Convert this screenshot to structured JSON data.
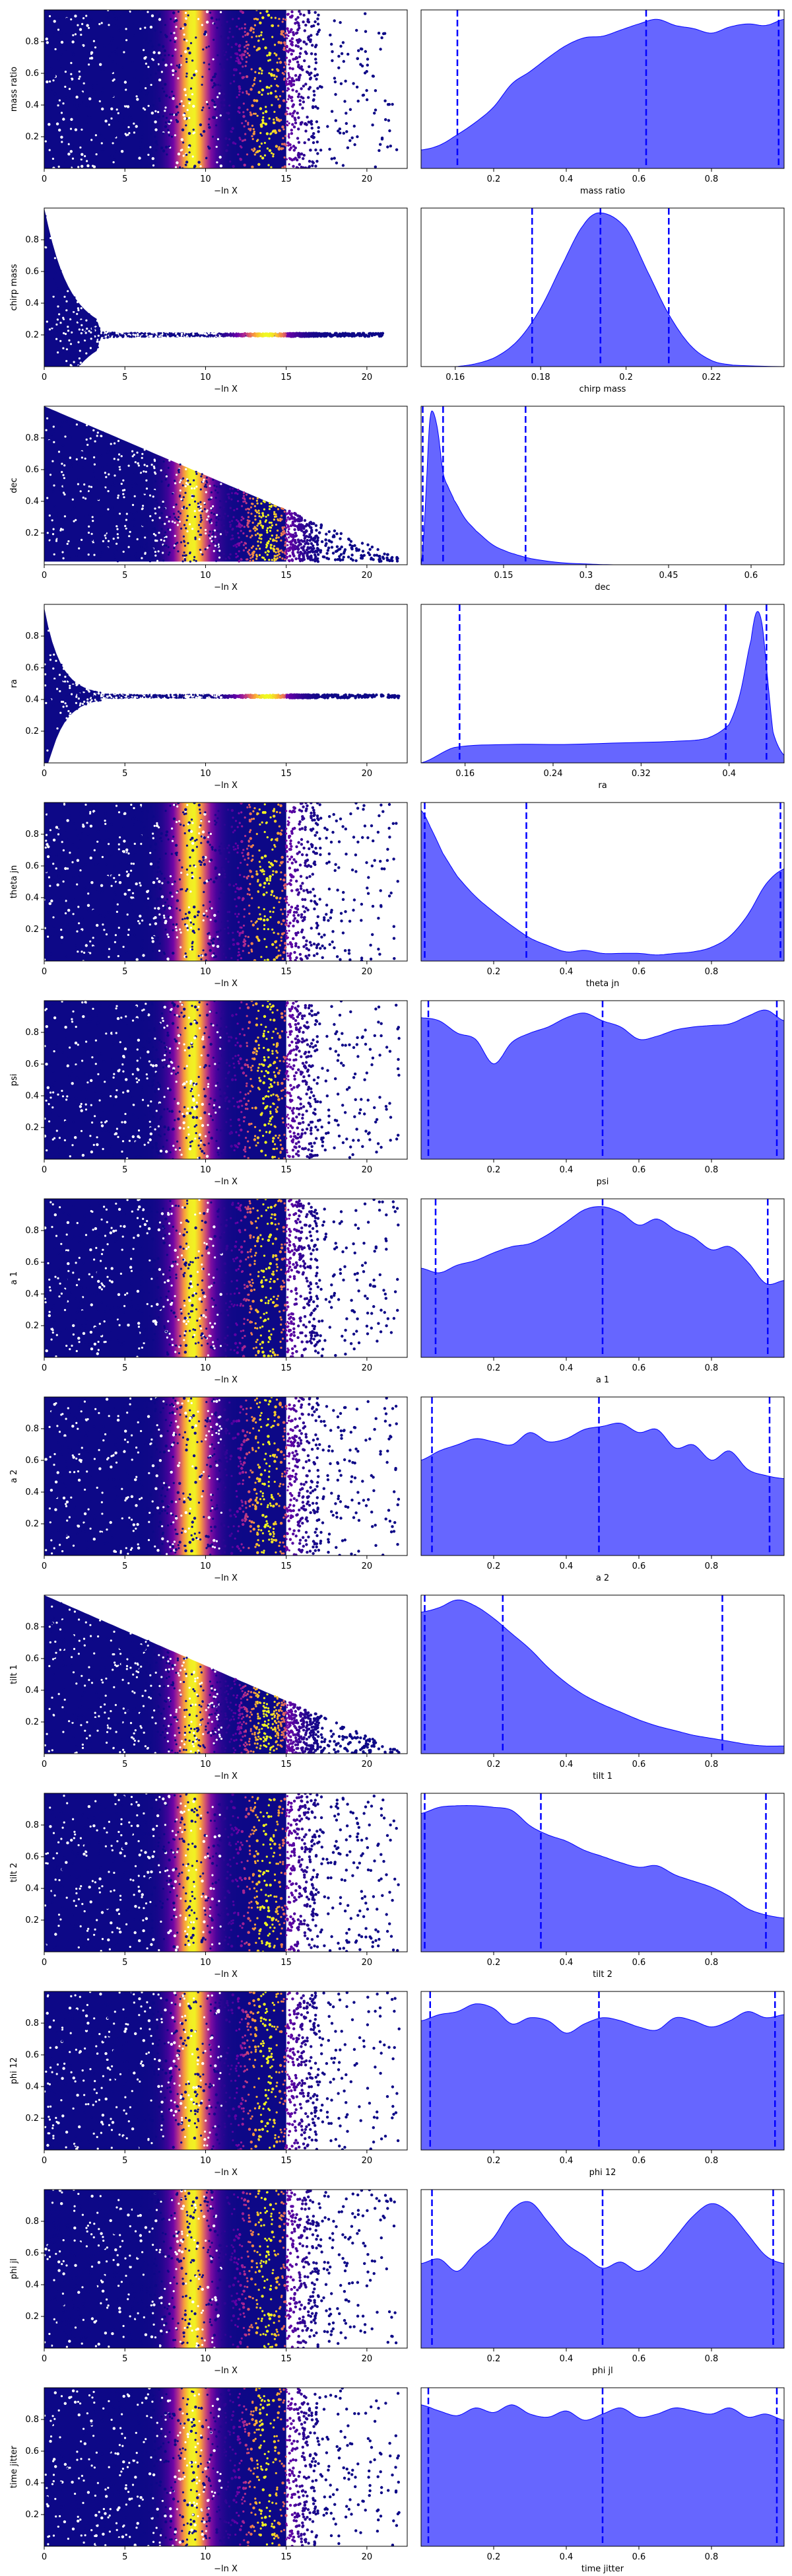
{
  "figure": {
    "colors": {
      "trace_low": "#0d0887",
      "trace_mid": "#cc4778",
      "trace_peak": "#f0f921",
      "posterior_fill": "#6666ff",
      "posterior_line": "#0000ff",
      "quantile_line": "#0000ff"
    },
    "colormap": "plasma"
  },
  "chart_data": [
    {
      "type": "scatter",
      "parameter": "mass ratio",
      "trace": {
        "xlabel": "−ln X",
        "ylabel": "mass ratio",
        "xlim": [
          0,
          22.5
        ],
        "ylim": [
          0.0,
          1.0
        ],
        "xticks": [
          0,
          5,
          10,
          15,
          20
        ],
        "yticks": [
          0.2,
          0.4,
          0.6,
          0.8
        ],
        "pattern": "uniform",
        "xmax": 22
      },
      "posterior": {
        "type": "area",
        "xlabel": "mass ratio",
        "xlim": [
          0.0,
          1.0
        ],
        "xticks": [
          0.2,
          0.4,
          0.6,
          0.8
        ],
        "x": [
          0.0,
          0.05,
          0.1,
          0.15,
          0.2,
          0.25,
          0.3,
          0.35,
          0.4,
          0.45,
          0.5,
          0.55,
          0.6,
          0.65,
          0.7,
          0.75,
          0.8,
          0.85,
          0.9,
          0.95,
          1.0
        ],
        "density": [
          0.12,
          0.15,
          0.22,
          0.3,
          0.4,
          0.55,
          0.63,
          0.72,
          0.8,
          0.85,
          0.86,
          0.9,
          0.94,
          0.97,
          0.93,
          0.91,
          0.88,
          0.92,
          0.94,
          0.93,
          0.97
        ],
        "quantiles": [
          0.1,
          0.62,
          0.985
        ]
      }
    },
    {
      "type": "scatter",
      "parameter": "chirp mass",
      "trace": {
        "xlabel": "−ln X",
        "ylabel": "chirp mass",
        "xlim": [
          0,
          22.5
        ],
        "ylim": [
          0.0,
          1.0
        ],
        "xticks": [
          0,
          5,
          10,
          15,
          20
        ],
        "yticks": [
          0.2,
          0.4,
          0.6,
          0.8
        ],
        "pattern": "converge",
        "center": 0.2,
        "start_spread": 0.8,
        "decay": 1.5,
        "xmax": 21
      },
      "posterior": {
        "type": "area",
        "xlabel": "chirp mass",
        "xlim": [
          0.152,
          0.237
        ],
        "xticks": [
          0.16,
          0.18,
          0.2,
          0.22
        ],
        "x": [
          0.152,
          0.16,
          0.165,
          0.17,
          0.175,
          0.18,
          0.185,
          0.19,
          0.194,
          0.2,
          0.205,
          0.21,
          0.215,
          0.22,
          0.225,
          0.237
        ],
        "density": [
          0.0,
          0.0,
          0.02,
          0.07,
          0.18,
          0.38,
          0.66,
          0.92,
          1.0,
          0.9,
          0.62,
          0.34,
          0.14,
          0.04,
          0.01,
          0.0
        ],
        "quantiles": [
          0.178,
          0.194,
          0.21
        ]
      }
    },
    {
      "type": "scatter",
      "parameter": "dec",
      "trace": {
        "xlabel": "−ln X",
        "ylabel": "dec",
        "xlim": [
          0,
          22.5
        ],
        "ylim": [
          0.0,
          1.0
        ],
        "xticks": [
          0,
          5,
          10,
          15,
          20
        ],
        "yticks": [
          0.2,
          0.4,
          0.6,
          0.8
        ],
        "pattern": "wedge",
        "center": 0.02,
        "start_spread": 0.98,
        "xmax": 22
      },
      "posterior": {
        "type": "area",
        "xlabel": "dec",
        "xlim": [
          0.0,
          0.66
        ],
        "xticks": [
          0.15,
          0.3,
          0.45,
          0.6
        ],
        "x": [
          0.0,
          0.005,
          0.01,
          0.015,
          0.02,
          0.03,
          0.04,
          0.05,
          0.06,
          0.08,
          0.1,
          0.13,
          0.16,
          0.2,
          0.25,
          0.3,
          0.35,
          0.45,
          0.66
        ],
        "density": [
          0.0,
          0.2,
          0.55,
          0.9,
          1.0,
          0.88,
          0.6,
          0.5,
          0.42,
          0.3,
          0.22,
          0.13,
          0.08,
          0.04,
          0.015,
          0.005,
          0.0,
          0.0,
          0.0
        ],
        "quantiles": [
          0.003,
          0.04,
          0.19
        ]
      }
    },
    {
      "type": "scatter",
      "parameter": "ra",
      "trace": {
        "xlabel": "−ln X",
        "ylabel": "ra",
        "xlim": [
          0,
          22.5
        ],
        "ylim": [
          0.0,
          1.0
        ],
        "xticks": [
          0,
          5,
          10,
          15,
          20
        ],
        "yticks": [
          0.2,
          0.4,
          0.6,
          0.8
        ],
        "pattern": "converge",
        "center": 0.42,
        "start_spread": 0.55,
        "decay": 1.0,
        "xmax": 22
      },
      "posterior": {
        "type": "area",
        "xlabel": "ra",
        "xlim": [
          0.12,
          0.45
        ],
        "xticks": [
          0.16,
          0.24,
          0.32,
          0.4
        ],
        "x": [
          0.12,
          0.15,
          0.2,
          0.25,
          0.3,
          0.35,
          0.38,
          0.4,
          0.41,
          0.42,
          0.425,
          0.43,
          0.435,
          0.44,
          0.45
        ],
        "density": [
          0.0,
          0.1,
          0.12,
          0.12,
          0.13,
          0.14,
          0.16,
          0.25,
          0.45,
          0.8,
          0.98,
          0.9,
          0.55,
          0.2,
          0.05
        ],
        "quantiles": [
          0.155,
          0.397,
          0.434
        ]
      }
    },
    {
      "type": "scatter",
      "parameter": "theta jn",
      "trace": {
        "xlabel": "−ln X",
        "ylabel": "theta jn",
        "xlim": [
          0,
          22.5
        ],
        "ylim": [
          0.0,
          1.0
        ],
        "xticks": [
          0,
          5,
          10,
          15,
          20
        ],
        "yticks": [
          0.2,
          0.4,
          0.6,
          0.8
        ],
        "pattern": "uniform",
        "xmax": 22
      },
      "posterior": {
        "type": "area",
        "xlabel": "theta jn",
        "xlim": [
          0.0,
          1.0
        ],
        "xticks": [
          0.2,
          0.4,
          0.6,
          0.8
        ],
        "x": [
          0.0,
          0.03,
          0.06,
          0.1,
          0.15,
          0.2,
          0.25,
          0.3,
          0.35,
          0.4,
          0.45,
          0.5,
          0.55,
          0.6,
          0.65,
          0.7,
          0.75,
          0.8,
          0.85,
          0.9,
          0.95,
          1.0
        ],
        "density": [
          0.98,
          0.85,
          0.7,
          0.55,
          0.42,
          0.32,
          0.23,
          0.15,
          0.1,
          0.06,
          0.07,
          0.05,
          0.05,
          0.05,
          0.04,
          0.05,
          0.06,
          0.09,
          0.16,
          0.3,
          0.5,
          0.6
        ],
        "quantiles": [
          0.01,
          0.29,
          0.99
        ]
      }
    },
    {
      "type": "scatter",
      "parameter": "psi",
      "trace": {
        "xlabel": "−ln X",
        "ylabel": "psi",
        "xlim": [
          0,
          22.5
        ],
        "ylim": [
          0.0,
          1.0
        ],
        "xticks": [
          0,
          5,
          10,
          15,
          20
        ],
        "yticks": [
          0.2,
          0.4,
          0.6,
          0.8
        ],
        "pattern": "uniform",
        "xmax": 22
      },
      "posterior": {
        "type": "area",
        "xlabel": "psi",
        "xlim": [
          0.0,
          1.0
        ],
        "xticks": [
          0.2,
          0.4,
          0.6,
          0.8
        ],
        "x": [
          0.0,
          0.05,
          0.1,
          0.15,
          0.2,
          0.25,
          0.3,
          0.35,
          0.4,
          0.45,
          0.5,
          0.55,
          0.6,
          0.65,
          0.7,
          0.75,
          0.8,
          0.85,
          0.9,
          0.95,
          1.0
        ],
        "density": [
          0.92,
          0.9,
          0.82,
          0.78,
          0.62,
          0.76,
          0.82,
          0.86,
          0.92,
          0.95,
          0.9,
          0.86,
          0.78,
          0.8,
          0.84,
          0.86,
          0.87,
          0.88,
          0.93,
          0.97,
          0.9
        ],
        "quantiles": [
          0.02,
          0.5,
          0.98
        ]
      }
    },
    {
      "type": "scatter",
      "parameter": "a 1",
      "trace": {
        "xlabel": "−ln X",
        "ylabel": "a 1",
        "xlim": [
          0,
          22.5
        ],
        "ylim": [
          0.0,
          1.0
        ],
        "xticks": [
          0,
          5,
          10,
          15,
          20
        ],
        "yticks": [
          0.2,
          0.4,
          0.6,
          0.8
        ],
        "pattern": "uniform",
        "xmax": 22
      },
      "posterior": {
        "type": "area",
        "xlabel": "a 1",
        "xlim": [
          0.0,
          1.0
        ],
        "xticks": [
          0.2,
          0.4,
          0.6,
          0.8
        ],
        "x": [
          0.0,
          0.05,
          0.1,
          0.15,
          0.2,
          0.25,
          0.3,
          0.35,
          0.4,
          0.45,
          0.5,
          0.55,
          0.6,
          0.65,
          0.7,
          0.75,
          0.8,
          0.85,
          0.9,
          0.95,
          1.0
        ],
        "density": [
          0.58,
          0.55,
          0.6,
          0.63,
          0.68,
          0.72,
          0.74,
          0.8,
          0.88,
          0.96,
          0.98,
          0.94,
          0.86,
          0.9,
          0.83,
          0.78,
          0.7,
          0.72,
          0.62,
          0.48,
          0.5
        ],
        "quantiles": [
          0.04,
          0.5,
          0.955
        ]
      }
    },
    {
      "type": "scatter",
      "parameter": "a 2",
      "trace": {
        "xlabel": "−ln X",
        "ylabel": "a 2",
        "xlim": [
          0,
          22.5
        ],
        "ylim": [
          0.0,
          1.0
        ],
        "xticks": [
          0,
          5,
          10,
          15,
          20
        ],
        "yticks": [
          0.2,
          0.4,
          0.6,
          0.8
        ],
        "pattern": "uniform",
        "xmax": 22
      },
      "posterior": {
        "type": "area",
        "xlabel": "a 2",
        "xlim": [
          0.0,
          1.0
        ],
        "xticks": [
          0.2,
          0.4,
          0.6,
          0.8
        ],
        "x": [
          0.0,
          0.05,
          0.1,
          0.15,
          0.2,
          0.25,
          0.3,
          0.35,
          0.4,
          0.45,
          0.5,
          0.55,
          0.6,
          0.65,
          0.7,
          0.75,
          0.8,
          0.85,
          0.9,
          0.95,
          1.0
        ],
        "density": [
          0.62,
          0.68,
          0.72,
          0.76,
          0.74,
          0.72,
          0.8,
          0.74,
          0.76,
          0.82,
          0.84,
          0.86,
          0.8,
          0.82,
          0.7,
          0.72,
          0.62,
          0.68,
          0.56,
          0.52,
          0.5
        ],
        "quantiles": [
          0.03,
          0.49,
          0.96
        ]
      }
    },
    {
      "type": "scatter",
      "parameter": "tilt 1",
      "trace": {
        "xlabel": "−ln X",
        "ylabel": "tilt 1",
        "xlim": [
          0,
          22.5
        ],
        "ylim": [
          0.0,
          1.0
        ],
        "xticks": [
          0,
          5,
          10,
          15,
          20
        ],
        "yticks": [
          0.2,
          0.4,
          0.6,
          0.8
        ],
        "pattern": "wedge",
        "center": 0.0,
        "start_spread": 1.0,
        "xmax": 22
      },
      "posterior": {
        "type": "area",
        "xlabel": "tilt 1",
        "xlim": [
          0.0,
          1.0
        ],
        "xticks": [
          0.2,
          0.4,
          0.6,
          0.8
        ],
        "x": [
          0.0,
          0.05,
          0.1,
          0.15,
          0.2,
          0.25,
          0.3,
          0.35,
          0.4,
          0.45,
          0.5,
          0.55,
          0.6,
          0.65,
          0.7,
          0.75,
          0.8,
          0.85,
          0.9,
          0.95,
          1.0
        ],
        "density": [
          0.92,
          0.95,
          1.0,
          0.96,
          0.88,
          0.78,
          0.68,
          0.56,
          0.46,
          0.38,
          0.32,
          0.27,
          0.22,
          0.18,
          0.15,
          0.12,
          0.1,
          0.08,
          0.06,
          0.05,
          0.05
        ],
        "quantiles": [
          0.01,
          0.225,
          0.83
        ]
      }
    },
    {
      "type": "scatter",
      "parameter": "tilt 2",
      "trace": {
        "xlabel": "−ln X",
        "ylabel": "tilt 2",
        "xlim": [
          0,
          22.5
        ],
        "ylim": [
          0.0,
          1.0
        ],
        "xticks": [
          0,
          5,
          10,
          15,
          20
        ],
        "yticks": [
          0.2,
          0.4,
          0.6,
          0.8
        ],
        "pattern": "uniform",
        "xmax": 22
      },
      "posterior": {
        "type": "area",
        "xlabel": "tilt 2",
        "xlim": [
          0.0,
          1.0
        ],
        "xticks": [
          0.2,
          0.4,
          0.6,
          0.8
        ],
        "x": [
          0.0,
          0.05,
          0.1,
          0.15,
          0.2,
          0.25,
          0.3,
          0.35,
          0.4,
          0.45,
          0.5,
          0.55,
          0.6,
          0.65,
          0.7,
          0.75,
          0.8,
          0.85,
          0.9,
          0.95,
          1.0
        ],
        "density": [
          0.9,
          0.94,
          0.95,
          0.95,
          0.94,
          0.92,
          0.82,
          0.76,
          0.72,
          0.66,
          0.62,
          0.58,
          0.55,
          0.56,
          0.5,
          0.46,
          0.42,
          0.36,
          0.28,
          0.24,
          0.22
        ],
        "quantiles": [
          0.01,
          0.33,
          0.95
        ]
      }
    },
    {
      "type": "scatter",
      "parameter": "phi 12",
      "trace": {
        "xlabel": "−ln X",
        "ylabel": "phi 12",
        "xlim": [
          0,
          22.5
        ],
        "ylim": [
          0.0,
          1.0
        ],
        "xticks": [
          0,
          5,
          10,
          15,
          20
        ],
        "yticks": [
          0.2,
          0.4,
          0.6,
          0.8
        ],
        "pattern": "uniform",
        "xmax": 22
      },
      "posterior": {
        "type": "area",
        "xlabel": "phi 12",
        "xlim": [
          0.0,
          1.0
        ],
        "xticks": [
          0.2,
          0.4,
          0.6,
          0.8
        ],
        "x": [
          0.0,
          0.05,
          0.1,
          0.15,
          0.2,
          0.25,
          0.3,
          0.35,
          0.4,
          0.45,
          0.5,
          0.55,
          0.6,
          0.65,
          0.7,
          0.75,
          0.8,
          0.85,
          0.9,
          0.95,
          1.0
        ],
        "density": [
          0.84,
          0.88,
          0.9,
          0.95,
          0.92,
          0.82,
          0.86,
          0.84,
          0.76,
          0.82,
          0.86,
          0.84,
          0.8,
          0.78,
          0.86,
          0.84,
          0.8,
          0.84,
          0.9,
          0.86,
          0.88
        ],
        "quantiles": [
          0.025,
          0.49,
          0.975
        ]
      }
    },
    {
      "type": "scatter",
      "parameter": "phi jl",
      "trace": {
        "xlabel": "−ln X",
        "ylabel": "phi jl",
        "xlim": [
          0,
          22.5
        ],
        "ylim": [
          0.0,
          1.0
        ],
        "xticks": [
          0,
          5,
          10,
          15,
          20
        ],
        "yticks": [
          0.2,
          0.4,
          0.6,
          0.8
        ],
        "pattern": "uniform",
        "xmax": 22
      },
      "posterior": {
        "type": "area",
        "xlabel": "phi jl",
        "xlim": [
          0.0,
          1.0
        ],
        "xticks": [
          0.2,
          0.4,
          0.6,
          0.8
        ],
        "x": [
          0.0,
          0.05,
          0.1,
          0.15,
          0.2,
          0.25,
          0.3,
          0.35,
          0.4,
          0.45,
          0.5,
          0.55,
          0.6,
          0.65,
          0.7,
          0.75,
          0.8,
          0.85,
          0.9,
          0.95,
          1.0
        ],
        "density": [
          0.55,
          0.58,
          0.5,
          0.62,
          0.72,
          0.9,
          0.95,
          0.82,
          0.68,
          0.6,
          0.52,
          0.56,
          0.5,
          0.58,
          0.72,
          0.86,
          0.94,
          0.88,
          0.74,
          0.6,
          0.55
        ],
        "quantiles": [
          0.03,
          0.5,
          0.97
        ]
      }
    },
    {
      "type": "scatter",
      "parameter": "time jitter",
      "trace": {
        "xlabel": "−ln X",
        "ylabel": "time jitter",
        "xlim": [
          0,
          22.5
        ],
        "ylim": [
          0.0,
          1.0
        ],
        "xticks": [
          0,
          5,
          10,
          15,
          20
        ],
        "yticks": [
          0.2,
          0.4,
          0.6,
          0.8
        ],
        "pattern": "uniform",
        "xmax": 22
      },
      "posterior": {
        "type": "area",
        "xlabel": "time jitter",
        "xlim": [
          0.0,
          1.0
        ],
        "xticks": [
          0.2,
          0.4,
          0.6,
          0.8
        ],
        "x": [
          0.0,
          0.05,
          0.1,
          0.15,
          0.2,
          0.25,
          0.3,
          0.35,
          0.4,
          0.45,
          0.5,
          0.55,
          0.6,
          0.65,
          0.7,
          0.75,
          0.8,
          0.85,
          0.9,
          0.95,
          1.0
        ],
        "density": [
          0.92,
          0.88,
          0.85,
          0.9,
          0.87,
          0.92,
          0.86,
          0.84,
          0.88,
          0.82,
          0.86,
          0.9,
          0.84,
          0.86,
          0.9,
          0.88,
          0.86,
          0.9,
          0.84,
          0.86,
          0.82
        ],
        "quantiles": [
          0.02,
          0.5,
          0.98
        ]
      }
    }
  ]
}
